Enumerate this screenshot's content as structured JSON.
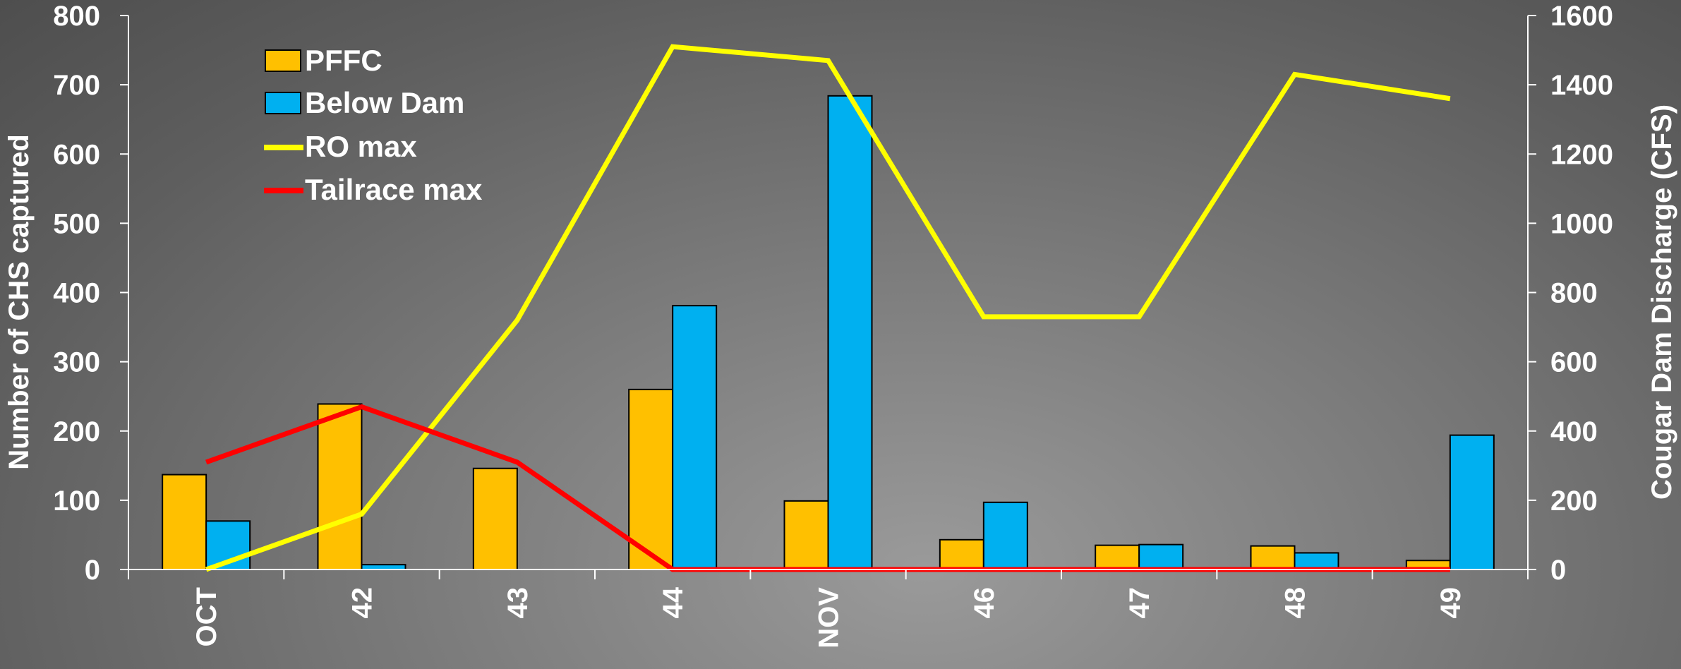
{
  "chart_data": {
    "type": "bar",
    "categories": [
      "OCT",
      "42",
      "43",
      "44",
      "NOV",
      "46",
      "47",
      "48",
      "49"
    ],
    "title": "",
    "xlabel": "",
    "ylabel": "Number of CHS captured",
    "ylabel_right": "Cougar Dam Discharge (CFS)",
    "ylim": [
      0,
      800
    ],
    "ylim_right": [
      0,
      1600
    ],
    "yticks": [
      0,
      100,
      200,
      300,
      400,
      500,
      600,
      700,
      800
    ],
    "yticks_right": [
      0,
      200,
      400,
      600,
      800,
      1000,
      1200,
      1400,
      1600
    ],
    "grid": false,
    "legend_position": "top-left",
    "bar_series": [
      {
        "name": "PFFC",
        "color": "#ffc000",
        "values": [
          137,
          239,
          146,
          260,
          99,
          43,
          35,
          34,
          13
        ]
      },
      {
        "name": "Below Dam",
        "color": "#00b0f0",
        "values": [
          70,
          7,
          0,
          381,
          684,
          97,
          36,
          24,
          194
        ]
      }
    ],
    "line_series": [
      {
        "name": "RO max",
        "color": "#ffff00",
        "axis": "right",
        "values": [
          0,
          160,
          720,
          1510,
          1470,
          730,
          730,
          1430,
          1360
        ]
      },
      {
        "name": "Tailrace max",
        "color": "#ff0000",
        "axis": "right",
        "values": [
          310,
          470,
          310,
          0,
          0,
          0,
          0,
          0,
          0
        ]
      }
    ]
  }
}
